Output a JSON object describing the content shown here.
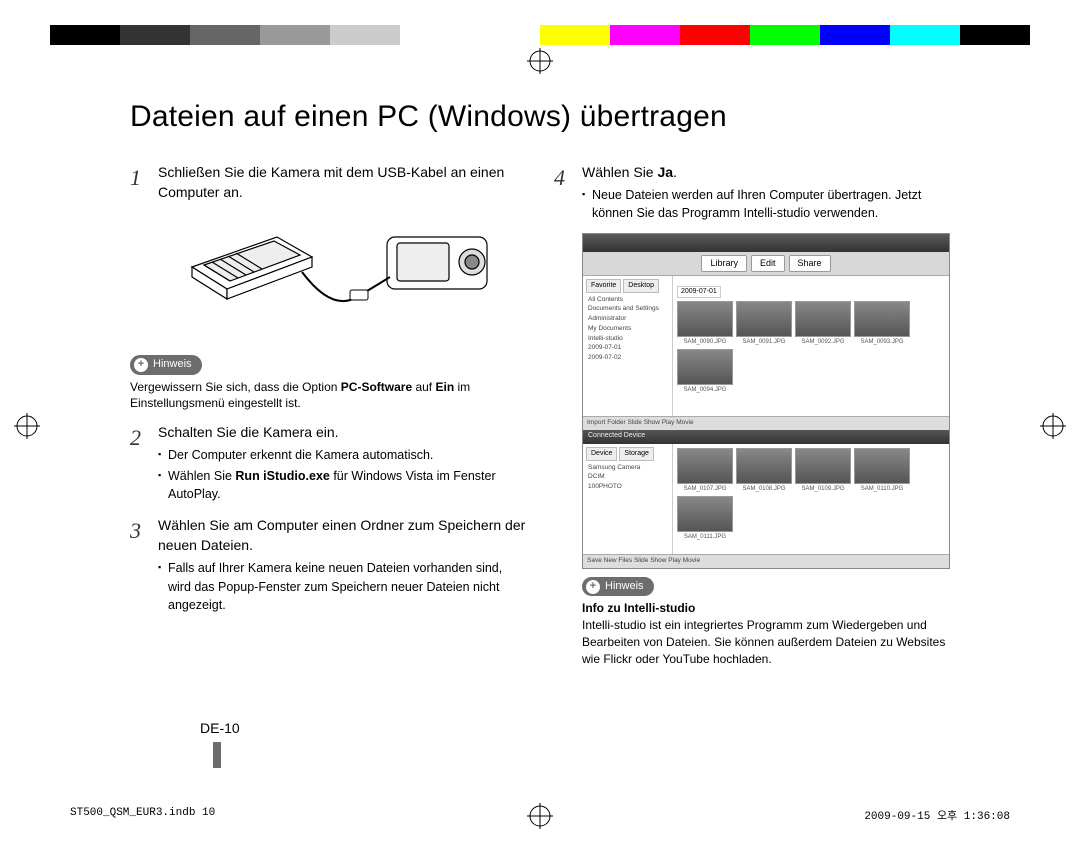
{
  "colorbar": [
    "#000000",
    "#333333",
    "#666666",
    "#999999",
    "#cccccc",
    "#ffffff",
    "#ffffff",
    "#ffff00",
    "#ff00ff",
    "#ff0000",
    "#00ff00",
    "#0000ff",
    "#00ffff",
    "#000000"
  ],
  "title": "Dateien auf einen PC (Windows) übertragen",
  "left": {
    "step1": {
      "num": "1",
      "text": "Schließen Sie die Kamera mit dem USB-Kabel an einen Computer an."
    },
    "hint1_label": "Hinweis",
    "hint1_text_pre": "Vergewissern Sie sich, dass die Option ",
    "hint1_bold1": "PC-Software",
    "hint1_mid": " auf ",
    "hint1_bold2": "Ein",
    "hint1_post": " im Einstellungsmenü eingestellt ist.",
    "step2": {
      "num": "2",
      "title": "Schalten Sie die Kamera ein.",
      "bullets": [
        "Der Computer erkennt die Kamera automatisch.",
        ""
      ],
      "b2_pre": "Wählen Sie ",
      "b2_bold": "Run iStudio.exe",
      "b2_post": " für Windows Vista im Fenster AutoPlay."
    },
    "step3": {
      "num": "3",
      "title": "Wählen Sie am Computer einen Ordner zum Speichern der neuen Dateien.",
      "bullet": "Falls auf Ihrer Kamera keine neuen Dateien vorhanden sind, wird das Popup-Fenster zum Speichern neuer Dateien nicht angezeigt."
    }
  },
  "right": {
    "step4": {
      "num": "4",
      "pre": "Wählen Sie ",
      "bold": "Ja",
      "post": ".",
      "bullet": "Neue Dateien werden auf Ihren Computer übertragen. Jetzt können Sie das Programm Intelli-studio verwenden."
    },
    "shot": {
      "tabs": [
        "Library",
        "Edit",
        "Share"
      ],
      "nav_tabs": [
        "Favorite",
        "Desktop"
      ],
      "tree": [
        "All Contents",
        " Documents and Settings",
        "  Administrator",
        "   My Documents",
        "    Intelli-studio",
        "     2009-07-01",
        "     2009-07-02"
      ],
      "date": "2009-07-01",
      "row1": [
        "SAM_0090.JPG",
        "SAM_0091.JPG",
        "SAM_0092.JPG",
        "SAM_0093.JPG",
        "SAM_0094.JPG"
      ],
      "foot1": "Import Folder          Slide Show    Play Movie",
      "sep": "Connected Device",
      "nav2_tabs": [
        "Device",
        "Storage"
      ],
      "tree2": [
        "Samsung Camera",
        " DCIM",
        "  100PHOTO"
      ],
      "row2": [
        "SAM_0107.JPG",
        "SAM_0108.JPG",
        "SAM_0109.JPG",
        "SAM_0110.JPG",
        "SAM_0111.JPG"
      ],
      "foot2": "Save New Files          Slide Show    Play Movie"
    },
    "hint_label": "Hinweis",
    "info_title": "Info zu Intelli-studio",
    "info_text": "Intelli-studio ist ein integriertes Programm zum Wiedergeben und Bearbeiten von Dateien. Sie können außerdem Dateien zu Websites wie Flickr oder YouTube hochladen."
  },
  "page_num": "DE-10",
  "footer_left": "ST500_QSM_EUR3.indb   10",
  "footer_right": "2009-09-15   오후 1:36:08"
}
